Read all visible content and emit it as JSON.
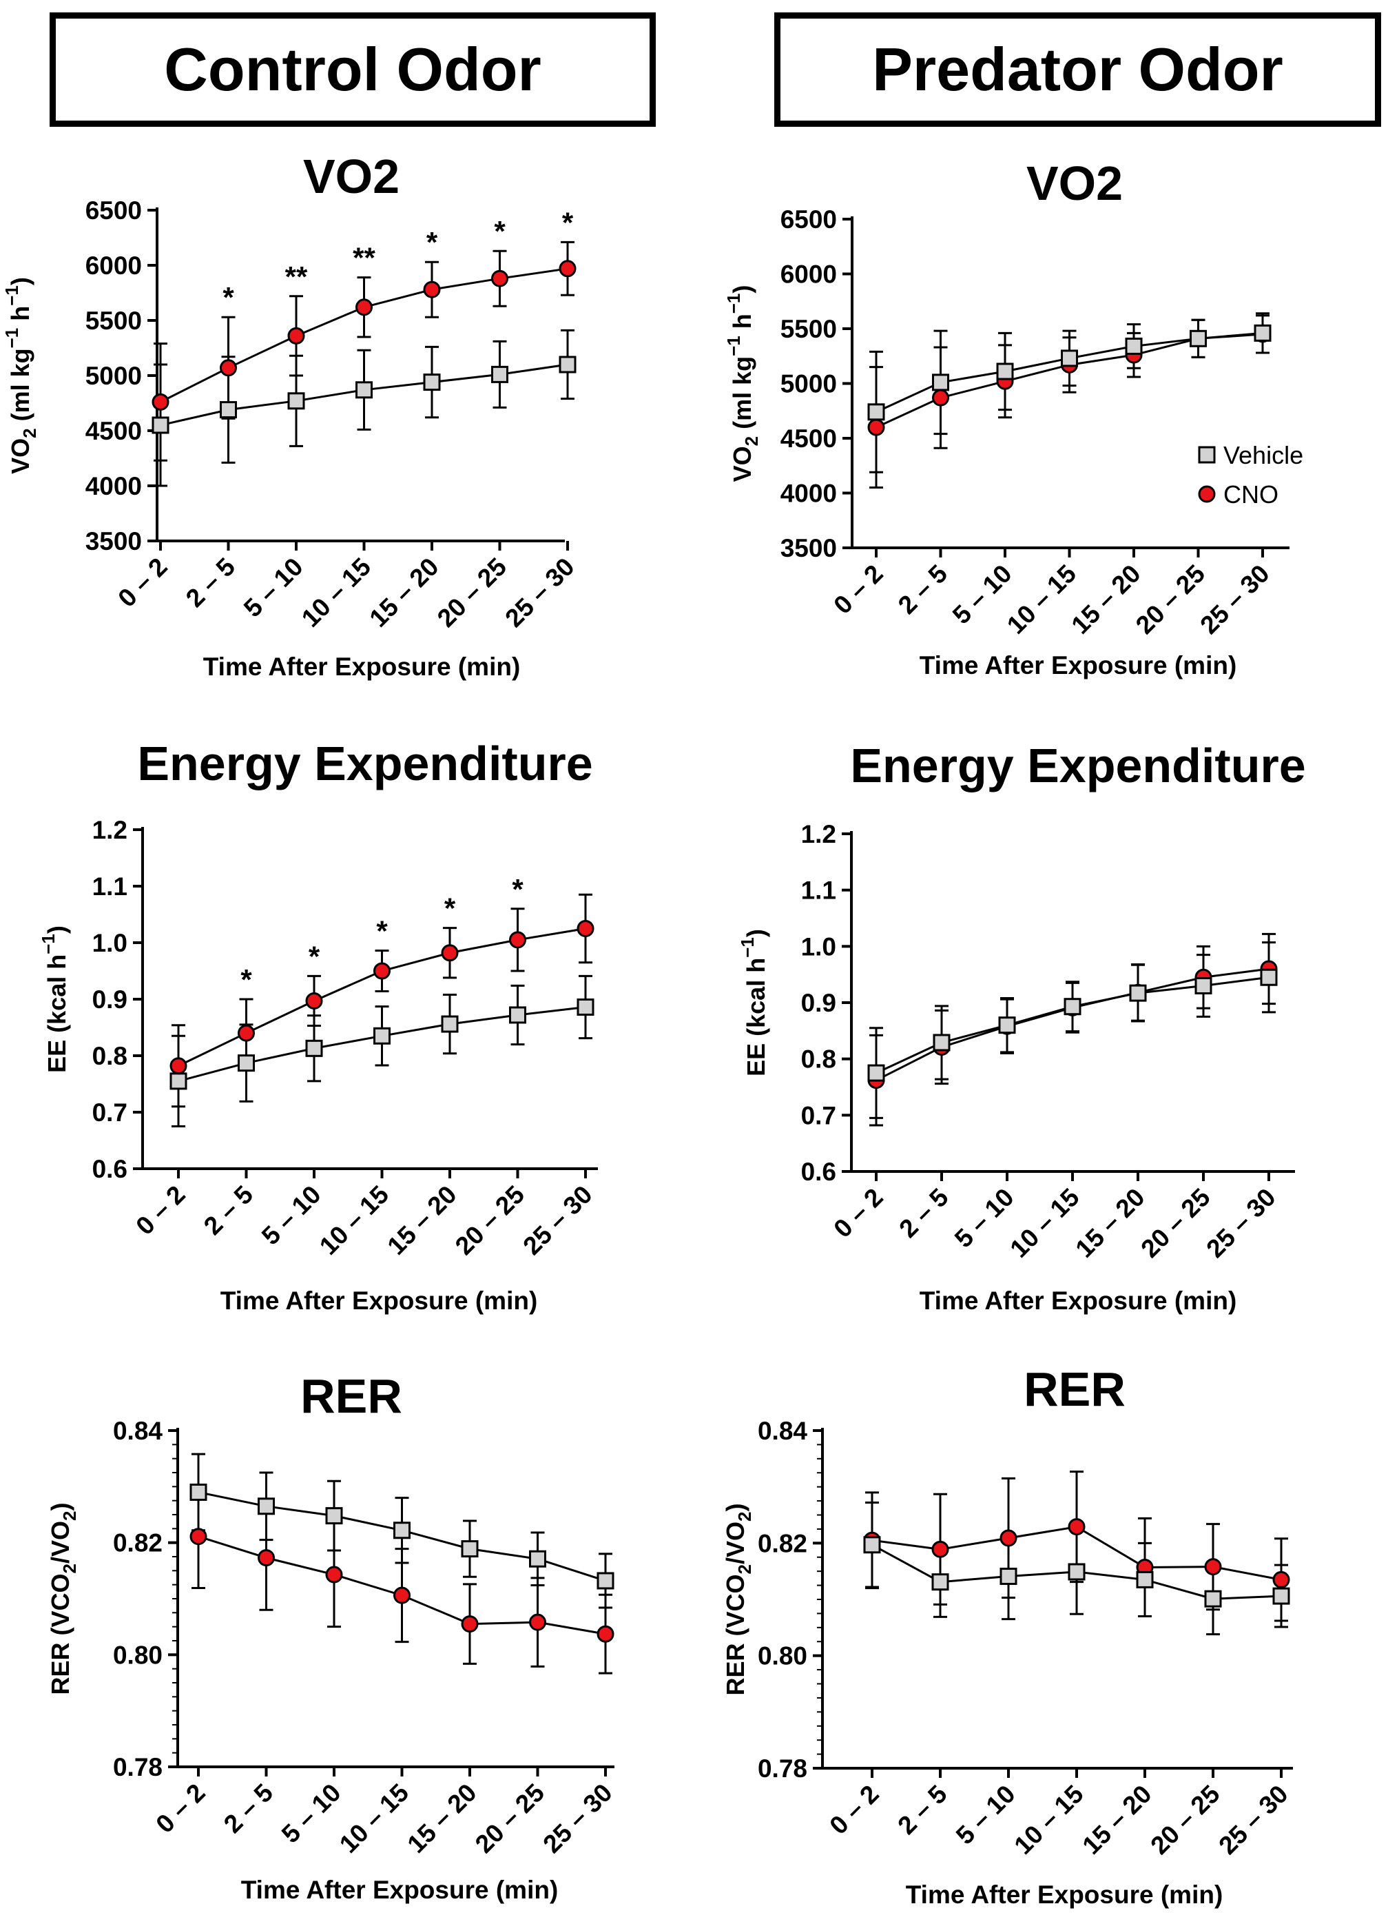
{
  "headers": {
    "left": "Control Odor",
    "right": "Predator Odor"
  },
  "legend": {
    "vehicle": "Vehicle",
    "cno": "CNO"
  },
  "colors": {
    "vehicle_fill": "#d3d3d3",
    "cno_fill": "#e8141a",
    "line": "#000000"
  },
  "chart_data": [
    {
      "type": "line",
      "panel": "control-vo2",
      "title": "VO2",
      "xlabel": "Time After Exposure (min)",
      "ylabel": {
        "main": "VO",
        "sub": "2",
        "rest": " (ml kg",
        "sup1": "−1",
        "mid": " h",
        "sup2": "−1",
        "end": ")"
      },
      "categories": [
        "0 – 2",
        "2 – 5",
        "5 – 10",
        "10 – 15",
        "15 – 20",
        "20 – 25",
        "25 – 30"
      ],
      "ylim": [
        3500,
        6500
      ],
      "yticks": [
        "3500",
        "4000",
        "4500",
        "5000",
        "5500",
        "6000",
        "6500"
      ],
      "yticks_values": [
        3500,
        4000,
        4500,
        5000,
        5500,
        6000,
        6500
      ],
      "series": [
        {
          "name": "Vehicle",
          "values": [
            4550,
            4690,
            4770,
            4870,
            4940,
            5010,
            5100
          ],
          "error": [
            550,
            480,
            410,
            360,
            320,
            300,
            310
          ]
        },
        {
          "name": "CNO",
          "values": [
            4760,
            5070,
            5360,
            5620,
            5780,
            5880,
            5970
          ],
          "error": [
            530,
            460,
            360,
            270,
            250,
            250,
            240
          ]
        }
      ],
      "annotations": [
        "",
        "*",
        "**",
        "**",
        "*",
        "*",
        "*"
      ]
    },
    {
      "type": "line",
      "panel": "predator-vo2",
      "title": "VO2",
      "xlabel": "Time After Exposure (min)",
      "ylabel": {
        "main": "VO",
        "sub": "2",
        "rest": " (ml kg",
        "sup1": "−1",
        "mid": " h",
        "sup2": "−1",
        "end": ")"
      },
      "categories": [
        "0 – 2",
        "2 – 5",
        "5 – 10",
        "10 – 15",
        "15 – 20",
        "20 – 25",
        "25 – 30"
      ],
      "ylim": [
        3500,
        6500
      ],
      "yticks": [
        "3500",
        "4000",
        "4500",
        "5000",
        "5500",
        "6000",
        "6500"
      ],
      "yticks_values": [
        3500,
        4000,
        4500,
        5000,
        5500,
        6000,
        6500
      ],
      "series": [
        {
          "name": "Vehicle",
          "values": [
            4740,
            5010,
            5110,
            5230,
            5340,
            5410,
            5460
          ],
          "error": [
            550,
            470,
            350,
            250,
            200,
            170,
            180
          ]
        },
        {
          "name": "CNO",
          "values": [
            4600,
            4870,
            5020,
            5170,
            5260,
            5410,
            5450
          ],
          "error": [
            550,
            460,
            330,
            250,
            200,
            170,
            170
          ]
        }
      ],
      "annotations": [
        "",
        "",
        "",
        "",
        "",
        "",
        ""
      ],
      "legend": "right-middle"
    },
    {
      "type": "line",
      "panel": "control-ee",
      "title": "Energy Expenditure",
      "xlabel": "Time After Exposure (min)",
      "ylabel": {
        "main": "EE (kcal h",
        "sup1": "−1",
        "end": ")"
      },
      "categories": [
        "0 – 2",
        "2 – 5",
        "5 – 10",
        "10 – 15",
        "15 – 20",
        "20 – 25",
        "25 – 30"
      ],
      "ylim": [
        0.6,
        1.2
      ],
      "yticks": [
        "0.6",
        "0.7",
        "0.8",
        "0.9",
        "1.0",
        "1.1",
        "1.2"
      ],
      "yticks_values": [
        0.6,
        0.7,
        0.8,
        0.9,
        1.0,
        1.1,
        1.2
      ],
      "series": [
        {
          "name": "Vehicle",
          "values": [
            0.755,
            0.787,
            0.813,
            0.835,
            0.856,
            0.872,
            0.886
          ],
          "error": [
            0.08,
            0.068,
            0.058,
            0.052,
            0.052,
            0.052,
            0.055
          ]
        },
        {
          "name": "CNO",
          "values": [
            0.782,
            0.84,
            0.897,
            0.95,
            0.982,
            1.005,
            1.025
          ],
          "error": [
            0.072,
            0.06,
            0.044,
            0.036,
            0.044,
            0.055,
            0.06
          ]
        }
      ],
      "annotations": [
        "",
        "*",
        "*",
        "*",
        "*",
        "*",
        ""
      ]
    },
    {
      "type": "line",
      "panel": "predator-ee",
      "title": "Energy Expenditure",
      "xlabel": "Time After Exposure (min)",
      "ylabel": {
        "main": "EE (kcal h",
        "sup1": "−1",
        "end": ")"
      },
      "categories": [
        "0 – 2",
        "2 – 5",
        "5 – 10",
        "10 – 15",
        "15 – 20",
        "20 – 25",
        "25 – 30"
      ],
      "ylim": [
        0.6,
        1.2
      ],
      "yticks": [
        "0.6",
        "0.7",
        "0.8",
        "0.9",
        "1.0",
        "1.1",
        "1.2"
      ],
      "yticks_values": [
        0.6,
        0.7,
        0.8,
        0.9,
        1.0,
        1.1,
        1.2
      ],
      "series": [
        {
          "name": "Vehicle",
          "values": [
            0.775,
            0.829,
            0.86,
            0.893,
            0.917,
            0.93,
            0.945
          ],
          "error": [
            0.08,
            0.065,
            0.048,
            0.044,
            0.05,
            0.055,
            0.062
          ]
        },
        {
          "name": "CNO",
          "values": [
            0.762,
            0.821,
            0.858,
            0.891,
            0.918,
            0.945,
            0.96
          ],
          "error": [
            0.08,
            0.065,
            0.048,
            0.044,
            0.05,
            0.055,
            0.062
          ]
        }
      ],
      "annotations": [
        "",
        "",
        "",
        "",
        "",
        "",
        ""
      ]
    },
    {
      "type": "line",
      "panel": "control-rer",
      "title": "RER",
      "xlabel": "Time After Exposure (min)",
      "ylabel": {
        "main": "RER (VCO",
        "sub": "2",
        "rest": "/VO",
        "sub2": "2",
        "end": ")"
      },
      "categories": [
        "0 – 2",
        "2 – 5",
        "5 – 10",
        "10 – 15",
        "15 – 20",
        "20 – 25",
        "25 – 30"
      ],
      "ylim": [
        0.78,
        0.84
      ],
      "yticks": [
        "0.78",
        "0.80",
        "0.82",
        "0.84"
      ],
      "yticks_values": [
        0.78,
        0.8,
        0.82,
        0.84
      ],
      "series": [
        {
          "name": "Vehicle",
          "values": [
            0.829,
            0.8265,
            0.8248,
            0.8222,
            0.8189,
            0.8171,
            0.8132
          ],
          "error": [
            0.0068,
            0.006,
            0.0062,
            0.0058,
            0.005,
            0.0047,
            0.0048
          ]
        },
        {
          "name": "CNO",
          "values": [
            0.8211,
            0.8173,
            0.8143,
            0.8106,
            0.8055,
            0.8058,
            0.8037
          ],
          "error": [
            0.0092,
            0.0093,
            0.0093,
            0.0083,
            0.0071,
            0.0079,
            0.007
          ]
        }
      ],
      "annotations": [
        "",
        "",
        "",
        "",
        "",
        "",
        ""
      ]
    },
    {
      "type": "line",
      "panel": "predator-rer",
      "title": "RER",
      "xlabel": "Time After Exposure (min)",
      "ylabel": {
        "main": "RER (VCO",
        "sub": "2",
        "rest": "/VO",
        "sub2": "2",
        "end": ")"
      },
      "categories": [
        "0 – 2",
        "2 – 5",
        "5 – 10",
        "10 – 15",
        "15 – 20",
        "20 – 25",
        "25 – 30"
      ],
      "ylim": [
        0.78,
        0.84
      ],
      "yticks": [
        "0.78",
        "0.80",
        "0.82",
        "0.84"
      ],
      "yticks_values": [
        0.78,
        0.8,
        0.82,
        0.84
      ],
      "series": [
        {
          "name": "Vehicle",
          "values": [
            0.8197,
            0.8131,
            0.8141,
            0.8149,
            0.8135,
            0.8101,
            0.8106
          ],
          "error": [
            0.0075,
            0.0062,
            0.0076,
            0.0075,
            0.0065,
            0.0063,
            0.0055
          ]
        },
        {
          "name": "CNO",
          "values": [
            0.8205,
            0.8189,
            0.8209,
            0.8229,
            0.8157,
            0.8158,
            0.8135
          ],
          "error": [
            0.0085,
            0.0098,
            0.0106,
            0.0098,
            0.0087,
            0.0076,
            0.0073
          ]
        }
      ],
      "annotations": [
        "",
        "",
        "",
        "",
        "",
        "",
        ""
      ]
    }
  ]
}
